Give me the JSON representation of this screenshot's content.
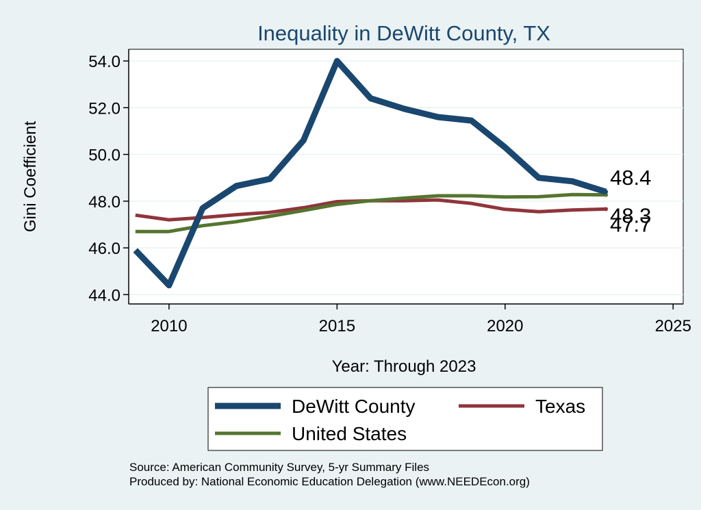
{
  "chart_data": {
    "type": "line",
    "title": "Inequality in DeWitt County, TX",
    "xlabel": "Year: Through 2023",
    "ylabel": "Gini Coefficient",
    "xlim": [
      2008.8,
      2025.3
    ],
    "ylim": [
      43.6,
      54.5
    ],
    "x_ticks": [
      2010,
      2015,
      2020,
      2025
    ],
    "y_ticks": [
      44.0,
      46.0,
      48.0,
      50.0,
      52.0,
      54.0
    ],
    "y_tick_labels": [
      "44.0",
      "46.0",
      "48.0",
      "50.0",
      "52.0",
      "54.0"
    ],
    "x": [
      2009,
      2010,
      2011,
      2012,
      2013,
      2014,
      2015,
      2016,
      2017,
      2018,
      2019,
      2020,
      2021,
      2022,
      2023
    ],
    "series": [
      {
        "name": "DeWitt County",
        "color": "#1a476f",
        "values": [
          45.9,
          44.4,
          47.7,
          48.65,
          48.95,
          50.6,
          54.0,
          52.4,
          51.95,
          51.6,
          51.45,
          50.3,
          49.0,
          48.85,
          48.4
        ],
        "end_label": "48.4"
      },
      {
        "name": "Texas",
        "color": "#90353b",
        "values": [
          47.4,
          47.2,
          47.3,
          47.42,
          47.52,
          47.72,
          47.98,
          48.02,
          48.02,
          48.05,
          47.9,
          47.65,
          47.55,
          47.62,
          47.66
        ],
        "end_label": "47.7"
      },
      {
        "name": "United States",
        "color": "#55752f",
        "values": [
          46.7,
          46.7,
          46.95,
          47.12,
          47.35,
          47.6,
          47.86,
          48.02,
          48.13,
          48.23,
          48.23,
          48.18,
          48.19,
          48.28,
          48.27
        ],
        "end_label": "48.3"
      }
    ],
    "legend_position": "bottom",
    "grid": true
  },
  "source_note": "Source: American Community Survey, 5-yr Summary Files",
  "producer_note": "Produced by: National Economic Education Delegation (www.NEEDEcon.org)"
}
